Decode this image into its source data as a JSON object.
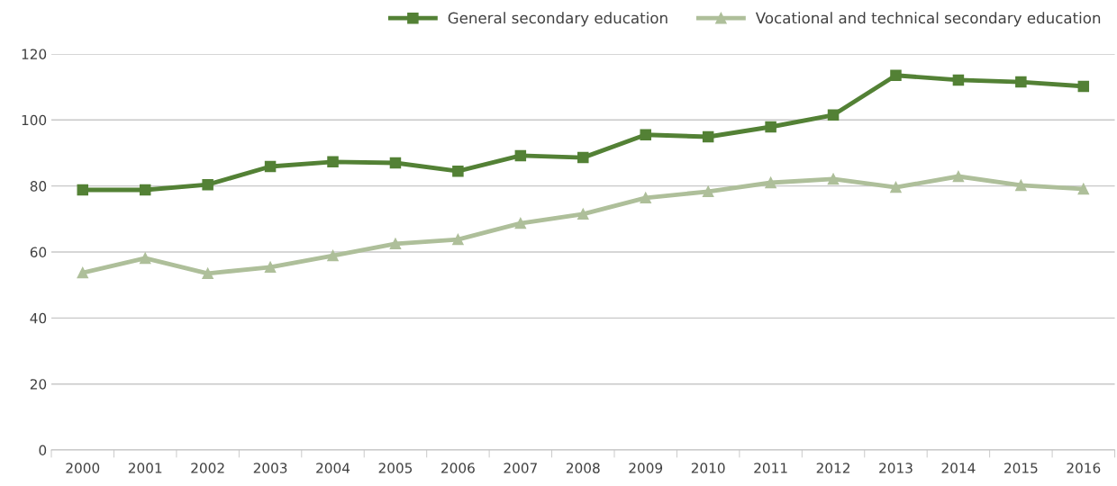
{
  "chart_data": {
    "type": "line",
    "categories": [
      "2000",
      "2001",
      "2002",
      "2003",
      "2004",
      "2005",
      "2006",
      "2007",
      "2008",
      "2009",
      "2010",
      "2011",
      "2012",
      "2013",
      "2014",
      "2015",
      "2016"
    ],
    "series": [
      {
        "name": "General secondary education",
        "color": "#538135",
        "marker": "square",
        "values": [
          78.8,
          78.8,
          80.4,
          85.9,
          87.3,
          87.0,
          84.5,
          89.2,
          88.6,
          95.5,
          94.9,
          97.9,
          101.5,
          113.5,
          112.1,
          111.5,
          110.2
        ]
      },
      {
        "name": "Vocational and technical secondary education",
        "color": "#aebf9a",
        "marker": "triangle",
        "values": [
          53.7,
          58.1,
          53.5,
          55.4,
          58.9,
          62.5,
          63.8,
          68.7,
          71.5,
          76.4,
          78.3,
          81.0,
          82.1,
          79.6,
          82.9,
          80.2,
          79.1
        ]
      }
    ],
    "ylim": [
      0,
      120
    ],
    "yticks": [
      0,
      20,
      40,
      60,
      80,
      100,
      120
    ],
    "grid": "y",
    "legend": "top right",
    "line_style": "solid"
  }
}
